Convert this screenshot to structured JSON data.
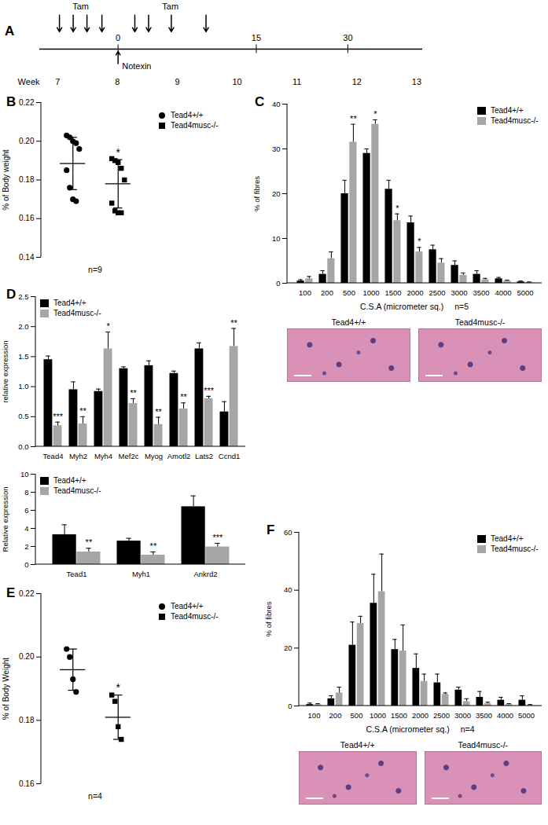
{
  "chart_data": [
    {
      "panel": "A",
      "type": "timeline",
      "xlabel": "Week",
      "xlim": [
        6.7,
        13.1
      ],
      "xticks": [
        7,
        8,
        9,
        10,
        11,
        12,
        13
      ],
      "tam_label": "Tam",
      "tam_groups": [
        [
          7.03,
          7.26,
          7.49,
          7.74
        ],
        [
          8.29,
          8.52,
          8.9,
          9.48
        ]
      ],
      "event_label": "Notexin",
      "event_x": 8.01,
      "day_ticks": [
        {
          "value": 8.01,
          "label": "0"
        },
        {
          "value": 10.32,
          "label": "15"
        },
        {
          "value": 11.85,
          "label": "30"
        }
      ]
    },
    {
      "panel": "B",
      "type": "scatter",
      "ylabel": "% of Body weight",
      "xlabel": "n=9",
      "ylim": [
        0.14,
        0.22
      ],
      "yticks": [
        0.14,
        0.16,
        0.18,
        {
          "value": 0.2,
          "label": "0.20"
        },
        0.22
      ],
      "tick_labels": "y",
      "legend": "right",
      "series": [
        {
          "name": "Tead4+/+",
          "color": "#000000",
          "marker": "circle",
          "values": [
            0.203,
            0.202,
            0.2,
            0.199,
            0.196,
            0.185,
            0.176,
            0.17,
            0.169
          ],
          "mean": 0.1885,
          "sd": 0.0135
        },
        {
          "name": "Tead4musc-/-",
          "color": "#000000",
          "marker": "square",
          "values": [
            0.191,
            0.19,
            0.189,
            0.186,
            0.18,
            0.168,
            0.164,
            0.163,
            0.163
          ],
          "mean": 0.178,
          "sd": 0.0125,
          "significance": "*"
        }
      ]
    },
    {
      "panel": "C",
      "type": "bar",
      "ylabel": "% of fibres",
      "xlabel": "C.S.A (micrometer sq.)",
      "annotation": "n=5",
      "categories": [
        "100",
        "200",
        "500",
        "1000",
        "1500",
        "2000",
        "2500",
        "3000",
        "3500",
        "4000",
        "5000"
      ],
      "ylim": [
        0,
        40
      ],
      "yticks": [
        0,
        10,
        20,
        30,
        40
      ],
      "legend": "top-right",
      "series": [
        {
          "name": "Tead4+/+",
          "color": "#000000",
          "values": [
            0.5,
            2,
            20,
            29,
            21,
            13.5,
            7.5,
            4,
            2,
            1,
            0.3
          ],
          "errors": [
            0.3,
            0.8,
            3,
            1,
            2,
            1.5,
            1,
            1,
            0.8,
            0.3,
            0.2
          ]
        },
        {
          "name": "Tead4musc-/-",
          "color": "#a6a6a6",
          "values": [
            1,
            5.5,
            31.5,
            35.5,
            14,
            7,
            4.5,
            1.8,
            0.8,
            0.5,
            0.2
          ],
          "errors": [
            0.5,
            1.5,
            4,
            1,
            1.5,
            1,
            1,
            0.5,
            0.3,
            0.2,
            0.1
          ],
          "significance": [
            null,
            null,
            "**",
            "*",
            "*",
            "*",
            null,
            null,
            null,
            null,
            null
          ]
        }
      ],
      "image_labels": [
        "Tead4+/+",
        "Tead4musc-/-"
      ]
    },
    {
      "panel": "D",
      "type": "bar",
      "ylabel": "relative expression",
      "categories": [
        "Tead4",
        "Myh2",
        "Myh4",
        "Mef2c",
        "Myog",
        "Amotl2",
        "Lats2",
        "Ccnd1"
      ],
      "ylim": [
        0,
        2.5
      ],
      "yticks": [
        {
          "value": 0,
          "label": "0.0"
        },
        0.5,
        {
          "value": 1,
          "label": "1.0"
        },
        1.5,
        {
          "value": 2,
          "label": "2.0"
        },
        2.5
      ],
      "legend": "top-left",
      "series": [
        {
          "name": "Tead4+/+",
          "color": "#000000",
          "values": [
            1.45,
            0.95,
            0.92,
            1.3,
            1.35,
            1.22,
            1.63,
            0.58
          ],
          "errors": [
            0.06,
            0.13,
            0.04,
            0.03,
            0.08,
            0.04,
            0.1,
            0.17
          ]
        },
        {
          "name": "Tead4musc-/-",
          "color": "#a6a6a6",
          "values": [
            0.35,
            0.38,
            1.63,
            0.72,
            0.37,
            0.63,
            0.8,
            1.67
          ],
          "errors": [
            0.06,
            0.12,
            0.28,
            0.08,
            0.12,
            0.1,
            0.04,
            0.3
          ],
          "significance": [
            "***",
            "**",
            "*",
            "**",
            "**",
            "**",
            "***",
            "**"
          ]
        }
      ]
    },
    {
      "type": "bar",
      "ylabel": "Relative expression",
      "categories": [
        "Tead1",
        "Myh1",
        "Ankrd2"
      ],
      "ylim": [
        0,
        10
      ],
      "yticks": [
        0,
        2,
        4,
        6,
        8,
        10
      ],
      "legend": "top-left",
      "series": [
        {
          "name": "Tead4+/+",
          "color": "#000000",
          "values": [
            3.3,
            2.6,
            6.4
          ],
          "errors": [
            1.1,
            0.3,
            1.2
          ]
        },
        {
          "name": "Tead4musc-/-",
          "color": "#a6a6a6",
          "values": [
            1.4,
            1.05,
            1.95
          ],
          "errors": [
            0.4,
            0.35,
            0.4
          ],
          "significance": [
            "**",
            "**",
            "***"
          ]
        }
      ]
    },
    {
      "panel": "E",
      "type": "scatter",
      "ylabel": "% of Body Weight",
      "xlabel": "n=4",
      "ylim": [
        0.16,
        0.22
      ],
      "yticks": [
        0.16,
        0.18,
        {
          "value": 0.2,
          "label": "0.20"
        },
        0.22
      ],
      "tick_labels": "y",
      "legend": "right",
      "series": [
        {
          "name": "Tead4+/+",
          "color": "#000000",
          "marker": "circle",
          "values": [
            0.2025,
            0.2,
            0.193,
            0.189
          ],
          "mean": 0.196,
          "sd": 0.0065
        },
        {
          "name": "Tead4musc-/-",
          "color": "#000000",
          "marker": "square",
          "values": [
            0.188,
            0.186,
            0.178,
            0.174
          ],
          "mean": 0.181,
          "sd": 0.007,
          "significance": "*"
        }
      ]
    },
    {
      "panel": "F",
      "type": "bar",
      "ylabel": "% of fibres",
      "xlabel": "C.S.A (micrometer sq.)",
      "annotation": "n=4",
      "categories": [
        "100",
        "200",
        "500",
        "1000",
        "1500",
        "2000",
        "2500",
        "3000",
        "3500",
        "4000",
        "5000"
      ],
      "ylim": [
        0,
        60
      ],
      "yticks": [
        0,
        20,
        40,
        60
      ],
      "legend": "top-right",
      "series": [
        {
          "name": "Tead4+/+",
          "color": "#000000",
          "values": [
            0.5,
            2.5,
            21,
            35.5,
            19.5,
            13,
            8,
            5.5,
            3,
            2,
            2
          ],
          "errors": [
            0.5,
            1,
            8,
            10,
            3.5,
            5,
            3,
            1,
            2,
            1,
            1.5
          ]
        },
        {
          "name": "Tead4musc-/-",
          "color": "#a6a6a6",
          "values": [
            0.5,
            4.5,
            28.5,
            39.5,
            19,
            8.5,
            4,
            1.5,
            0.8,
            0.5,
            0.3
          ],
          "errors": [
            0.3,
            2,
            2.5,
            13,
            9,
            2.5,
            0.5,
            1,
            0.5,
            0.3,
            0.2
          ]
        }
      ],
      "image_labels": [
        "Tead4+/+",
        "Tead4musc-/-"
      ]
    }
  ]
}
